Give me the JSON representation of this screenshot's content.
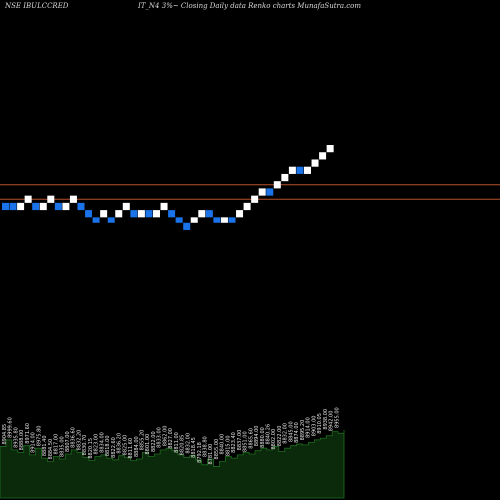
{
  "header": {
    "symbol": "NSE IBULCCRED",
    "caption": "IT_N4  3%~  Closing Daily data  Renko  charts MunafaSutra.com"
  },
  "colors": {
    "background": "#000000",
    "brick_up": "#ffffff",
    "brick_down": "#1a73e8",
    "level_line": "#b8502b",
    "volume_fill": "#0b2a0b",
    "volume_stroke": "#1f6e1f"
  },
  "chart_data": [
    {
      "type": "renko",
      "title": "",
      "brick_size_percent": 3,
      "levels": [
        100,
        92
      ],
      "bricks": [
        {
          "direction": "down",
          "low": 86,
          "high": 90
        },
        {
          "direction": "down",
          "low": 86,
          "high": 90
        },
        {
          "direction": "up",
          "low": 86,
          "high": 90
        },
        {
          "direction": "up",
          "low": 90,
          "high": 94
        },
        {
          "direction": "down",
          "low": 86,
          "high": 90
        },
        {
          "direction": "up",
          "low": 86,
          "high": 90
        },
        {
          "direction": "up",
          "low": 90,
          "high": 94
        },
        {
          "direction": "down",
          "low": 86,
          "high": 90
        },
        {
          "direction": "up",
          "low": 86,
          "high": 90
        },
        {
          "direction": "up",
          "low": 90,
          "high": 94
        },
        {
          "direction": "down",
          "low": 86,
          "high": 90
        },
        {
          "direction": "down",
          "low": 82,
          "high": 86
        },
        {
          "direction": "down",
          "low": 79,
          "high": 82
        },
        {
          "direction": "up",
          "low": 82,
          "high": 86
        },
        {
          "direction": "down",
          "low": 79,
          "high": 82
        },
        {
          "direction": "up",
          "low": 82,
          "high": 86
        },
        {
          "direction": "up",
          "low": 86,
          "high": 90
        },
        {
          "direction": "down",
          "low": 82,
          "high": 86
        },
        {
          "direction": "up",
          "low": 82,
          "high": 86
        },
        {
          "direction": "down",
          "low": 82,
          "high": 86
        },
        {
          "direction": "up",
          "low": 82,
          "high": 86
        },
        {
          "direction": "up",
          "low": 86,
          "high": 90
        },
        {
          "direction": "down",
          "low": 82,
          "high": 86
        },
        {
          "direction": "down",
          "low": 79,
          "high": 82
        },
        {
          "direction": "down",
          "low": 75,
          "high": 79
        },
        {
          "direction": "up",
          "low": 79,
          "high": 82
        },
        {
          "direction": "up",
          "low": 82,
          "high": 86
        },
        {
          "direction": "down",
          "low": 82,
          "high": 86
        },
        {
          "direction": "down",
          "low": 79,
          "high": 82
        },
        {
          "direction": "up",
          "low": 79,
          "high": 82
        },
        {
          "direction": "down",
          "low": 79,
          "high": 82
        },
        {
          "direction": "up",
          "low": 82,
          "high": 86
        },
        {
          "direction": "up",
          "low": 86,
          "high": 90
        },
        {
          "direction": "up",
          "low": 90,
          "high": 94
        },
        {
          "direction": "up",
          "low": 94,
          "high": 98
        },
        {
          "direction": "down",
          "low": 94,
          "high": 98
        },
        {
          "direction": "up",
          "low": 98,
          "high": 102
        },
        {
          "direction": "up",
          "low": 102,
          "high": 106
        },
        {
          "direction": "up",
          "low": 106,
          "high": 110
        },
        {
          "direction": "down",
          "low": 106,
          "high": 110
        },
        {
          "direction": "up",
          "low": 106,
          "high": 110
        },
        {
          "direction": "up",
          "low": 110,
          "high": 114
        },
        {
          "direction": "up",
          "low": 114,
          "high": 118
        },
        {
          "direction": "up",
          "low": 118,
          "high": 122
        }
      ],
      "volume_labels": [
        "8904.85",
        "8999.60",
        "8935.80",
        "8888.00",
        "8971.60",
        "8914.00",
        "8975.80",
        "8881.40",
        "8884.50",
        "8817.00",
        "8835.00",
        "8807.00",
        "8836.60",
        "8832.20",
        "8830.70",
        "8820.15",
        "8823.00",
        "8834.00",
        "8818.00",
        "8822.60",
        "8836.20",
        "8825.00",
        "8811.60",
        "8884.00",
        "8855.20",
        "8801.00",
        "8822.00",
        "8833.00",
        "8862.00",
        "8827.00",
        "8811.00",
        "8820.85",
        "8832.00",
        "8818.45",
        "8792.18",
        "8838.80",
        "8781.00",
        "8855.00",
        "8840.00",
        "8815.00",
        "8823.40",
        "8837.00",
        "8851.00",
        "8865.60",
        "8894.00",
        "8880.00",
        "8840.26",
        "8802.00",
        "8822.00",
        "8832.00",
        "8845.00",
        "8874.00",
        "8895.20",
        "8914.00",
        "8903.00",
        "8910.05",
        "8938.00",
        "8942.00",
        "8955.00"
      ],
      "volume_values": [
        62,
        70,
        58,
        55,
        63,
        52,
        60,
        48,
        44,
        50,
        47,
        53,
        58,
        55,
        49,
        45,
        50,
        52,
        48,
        46,
        51,
        49,
        45,
        47,
        55,
        50,
        53,
        58,
        60,
        57,
        52,
        49,
        51,
        46,
        40,
        47,
        38,
        44,
        50,
        48,
        52,
        55,
        53,
        57,
        60,
        58,
        62,
        56,
        60,
        63,
        65,
        64,
        67,
        70,
        72,
        75,
        80,
        78,
        82
      ]
    }
  ]
}
